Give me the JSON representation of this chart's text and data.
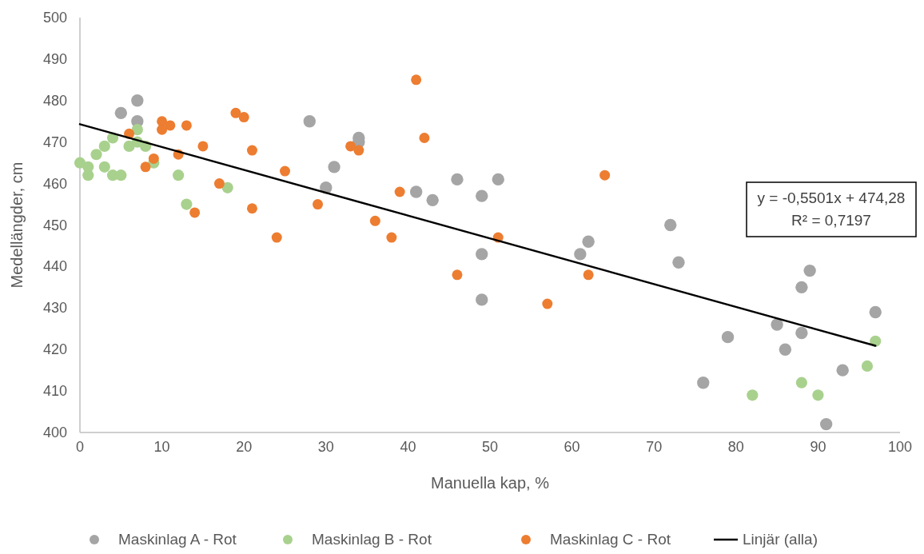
{
  "chart_data": {
    "type": "scatter",
    "xlabel": "Manuella kap, %",
    "ylabel": "Medellängder, cm",
    "xlim": [
      0,
      100
    ],
    "xticks": [
      0,
      10,
      20,
      30,
      40,
      50,
      60,
      70,
      80,
      90,
      100
    ],
    "ylim": [
      400,
      500
    ],
    "yticks": [
      400,
      410,
      420,
      430,
      440,
      450,
      460,
      470,
      480,
      490,
      500
    ],
    "grid": false,
    "legend": "bottom",
    "marker": "circle",
    "annotations": [
      "y = -0,5501x + 474,28",
      "R² = 0,7197"
    ],
    "series": [
      {
        "name": "Maskinlag A - Rot",
        "color": "#a5a5a5",
        "x": [
          5,
          7,
          7,
          28,
          34,
          34,
          31,
          30,
          41,
          43,
          46,
          49,
          51,
          49,
          49,
          61,
          62,
          72,
          73,
          76,
          79,
          85,
          86,
          88,
          89,
          88,
          93,
          91,
          97
        ],
        "values": [
          477,
          480,
          475,
          475,
          471,
          470,
          464,
          459,
          458,
          456,
          461,
          457,
          461,
          443,
          432,
          443,
          446,
          450,
          441,
          412,
          423,
          426,
          420,
          435,
          439,
          424,
          415,
          402,
          429
        ]
      },
      {
        "name": "Maskinlag B - Rot",
        "color": "#a9d18e",
        "x": [
          0,
          1,
          1,
          2,
          3,
          3,
          4,
          4,
          5,
          6,
          7,
          7,
          8,
          9,
          12,
          13,
          18,
          82,
          88,
          90,
          96,
          97
        ],
        "values": [
          465,
          464,
          462,
          467,
          469,
          464,
          471,
          462,
          462,
          469,
          473,
          470,
          469,
          465,
          462,
          455,
          459,
          409,
          412,
          409,
          416,
          422
        ]
      },
      {
        "name": "Maskinlag C - Rot",
        "color": "#ed7d31",
        "x": [
          6,
          8,
          9,
          10,
          10,
          11,
          12,
          13,
          14,
          15,
          17,
          19,
          20,
          21,
          21,
          24,
          25,
          29,
          33,
          34,
          36,
          38,
          39,
          41,
          42,
          46,
          51,
          57,
          62,
          64
        ],
        "values": [
          472,
          464,
          466,
          475,
          473,
          474,
          467,
          474,
          453,
          469,
          460,
          477,
          476,
          468,
          454,
          447,
          463,
          455,
          469,
          468,
          451,
          447,
          458,
          485,
          471,
          438,
          447,
          431,
          438,
          462
        ]
      },
      {
        "name": "Linjär (alla)",
        "type": "line",
        "color": "#000000",
        "marker": "none",
        "x": [
          0,
          97
        ],
        "values": [
          474.3,
          420.9
        ]
      }
    ]
  }
}
